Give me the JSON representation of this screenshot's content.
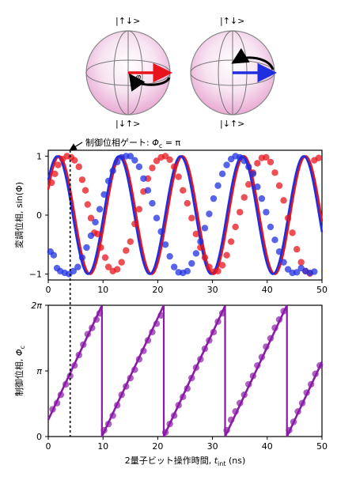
{
  "bloch": {
    "left": {
      "top_ket": "|↑↓>",
      "bottom_ket": "|↓↑>",
      "phi": "φ"
    },
    "right": {
      "top_ket": "|↑↓>",
      "bottom_ket": "|↓↑>"
    },
    "colors": {
      "sphere": "#f2c6e3",
      "red": "#e8141c",
      "blue": "#1f2fe0",
      "black": "#000000"
    }
  },
  "annotation": {
    "text": "制御位相ゲート: ",
    "math": "Φ",
    "sub": "c",
    "tail": " = π"
  },
  "chart_data": [
    {
      "type": "scatter",
      "title": "",
      "xlabel": "",
      "ylabel": "変調位相, sin(Φ)",
      "xlim": [
        0,
        50
      ],
      "ylim": [
        -1.1,
        1.1
      ],
      "xticks": [
        "0",
        "10",
        "20",
        "30",
        "40",
        "50"
      ],
      "yticks": [
        "1",
        "0",
        "−1"
      ],
      "vline_x": 4,
      "series": [
        {
          "color": "#e8141c",
          "fit": "sin(2π(t-0.6)/11.25 + π/4)",
          "points": [
            [
              0.6,
              0.55
            ],
            [
              1.2,
              0.7
            ],
            [
              1.8,
              0.85
            ],
            [
              2.6,
              0.95
            ],
            [
              3.4,
              1.0
            ],
            [
              4.2,
              0.98
            ],
            [
              4.8,
              0.93
            ],
            [
              5.6,
              0.82
            ],
            [
              6.2,
              0.6
            ],
            [
              6.8,
              0.42
            ],
            [
              7.2,
              0.18
            ],
            [
              7.8,
              -0.05
            ],
            [
              8.4,
              -0.3
            ],
            [
              9.0,
              -0.32
            ],
            [
              9.6,
              -0.55
            ],
            [
              10.4,
              -0.72
            ],
            [
              11.0,
              -0.88
            ],
            [
              11.8,
              -0.95
            ],
            [
              12.6,
              -0.92
            ],
            [
              13.4,
              -0.8
            ],
            [
              14.2,
              -0.6
            ],
            [
              15.0,
              -0.45
            ],
            [
              15.8,
              -0.15
            ],
            [
              16.6,
              0.1
            ],
            [
              17.4,
              0.4
            ],
            [
              18.2,
              0.62
            ],
            [
              19.0,
              0.8
            ],
            [
              19.8,
              0.92
            ],
            [
              20.6,
              0.98
            ],
            [
              21.4,
              1.0
            ],
            [
              22.2,
              0.94
            ],
            [
              23.0,
              0.82
            ],
            [
              23.8,
              0.65
            ],
            [
              24.6,
              0.42
            ],
            [
              25.4,
              0.2
            ],
            [
              26.2,
              -0.05
            ],
            [
              27.0,
              -0.32
            ],
            [
              27.8,
              -0.55
            ],
            [
              28.6,
              -0.72
            ],
            [
              29.4,
              -0.88
            ],
            [
              30.2,
              -0.96
            ],
            [
              31.0,
              -0.95
            ],
            [
              31.8,
              -0.85
            ],
            [
              32.6,
              -0.68
            ],
            [
              33.4,
              -0.45
            ],
            [
              34.2,
              -0.2
            ],
            [
              35.0,
              0.05
            ],
            [
              35.8,
              0.3
            ],
            [
              36.6,
              0.52
            ],
            [
              37.4,
              0.72
            ],
            [
              38.2,
              0.88
            ],
            [
              39.0,
              0.97
            ],
            [
              39.8,
              0.98
            ],
            [
              40.6,
              0.9
            ],
            [
              41.4,
              0.72
            ],
            [
              42.2,
              0.5
            ],
            [
              43.0,
              0.25
            ],
            [
              43.8,
              -0.05
            ],
            [
              44.6,
              -0.3
            ],
            [
              45.4,
              -0.58
            ],
            [
              46.2,
              -0.8
            ],
            [
              47.0,
              -0.95
            ],
            [
              47.8,
              -0.99
            ],
            [
              48.6,
              0.93
            ],
            [
              49.4,
              0.97
            ]
          ]
        },
        {
          "color": "#1f2fe0",
          "fit": "sin(2π(t-10.1)/11.25)",
          "points": [
            [
              0.4,
              -0.62
            ],
            [
              1.0,
              -0.68
            ],
            [
              1.6,
              -0.9
            ],
            [
              2.2,
              -0.95
            ],
            [
              3.0,
              -0.98
            ],
            [
              3.8,
              -1.0
            ],
            [
              4.6,
              -0.95
            ],
            [
              5.4,
              -0.88
            ],
            [
              6.2,
              -0.72
            ],
            [
              7.0,
              -0.55
            ],
            [
              7.8,
              -0.35
            ],
            [
              8.6,
              -0.12
            ],
            [
              9.4,
              0.1
            ],
            [
              10.2,
              0.35
            ],
            [
              11.0,
              0.58
            ],
            [
              11.8,
              0.75
            ],
            [
              12.6,
              0.9
            ],
            [
              13.4,
              0.98
            ],
            [
              14.2,
              1.0
            ],
            [
              15.0,
              1.0
            ],
            [
              15.8,
              0.93
            ],
            [
              16.6,
              0.82
            ],
            [
              17.4,
              0.62
            ],
            [
              18.2,
              0.42
            ],
            [
              19.0,
              0.2
            ],
            [
              19.8,
              -0.05
            ],
            [
              20.6,
              -0.28
            ],
            [
              21.4,
              -0.5
            ],
            [
              22.2,
              -0.7
            ],
            [
              23.0,
              -0.88
            ],
            [
              23.8,
              -0.97
            ],
            [
              24.6,
              -0.98
            ],
            [
              25.4,
              -0.95
            ],
            [
              26.2,
              -0.82
            ],
            [
              27.0,
              -0.65
            ],
            [
              27.8,
              -0.45
            ],
            [
              28.6,
              -0.22
            ],
            [
              29.4,
              0.02
            ],
            [
              30.2,
              0.28
            ],
            [
              31.0,
              0.5
            ],
            [
              31.8,
              0.7
            ],
            [
              32.6,
              0.85
            ],
            [
              33.4,
              0.95
            ],
            [
              34.2,
              1.0
            ],
            [
              35.0,
              0.98
            ],
            [
              35.8,
              0.92
            ],
            [
              36.6,
              0.82
            ],
            [
              37.4,
              0.7
            ],
            [
              38.2,
              0.48
            ],
            [
              39.0,
              0.28
            ],
            [
              39.8,
              0.05
            ],
            [
              40.6,
              -0.2
            ],
            [
              41.4,
              -0.42
            ],
            [
              42.2,
              -0.62
            ],
            [
              43.0,
              -0.8
            ],
            [
              43.8,
              -0.92
            ],
            [
              44.6,
              -0.98
            ],
            [
              45.4,
              -0.97
            ],
            [
              46.2,
              -0.9
            ],
            [
              47.0,
              -0.95
            ],
            [
              47.8,
              -0.98
            ],
            [
              48.6,
              -0.96
            ]
          ]
        }
      ]
    },
    {
      "type": "scatter",
      "title": "",
      "xlabel": "2量子ビット操作時間, ",
      "xlabel_math": "t",
      "xlabel_sub": "int",
      "xlabel_unit": " (ns)",
      "ylabel": "制御位相, ",
      "ylabel_math": "Φ",
      "ylabel_sub": "c",
      "xlim": [
        0,
        50
      ],
      "ylim": [
        0,
        6.2832
      ],
      "xticks": [
        "0",
        "10",
        "20",
        "30",
        "40",
        "50"
      ],
      "yticks": [
        "2π",
        "π",
        "0"
      ],
      "vline_x": 4,
      "series": [
        {
          "color": "#8a1aa6",
          "fit_sawtooth": {
            "slope_per_ns": 0.5585,
            "offset": 0.8,
            "wraps": [
              9.8,
              21.1,
              32.3,
              43.6
            ]
          },
          "points": [
            [
              0.8,
              1.3
            ],
            [
              1.6,
              1.6
            ],
            [
              2.3,
              2.0
            ],
            [
              3.2,
              2.5
            ],
            [
              4.0,
              2.9
            ],
            [
              4.8,
              3.4
            ],
            [
              5.6,
              3.9
            ],
            [
              6.4,
              4.4
            ],
            [
              7.2,
              4.9
            ],
            [
              8.0,
              5.2
            ],
            [
              8.8,
              5.6
            ],
            [
              9.4,
              5.9
            ],
            [
              10.2,
              0.3
            ],
            [
              11.0,
              0.6
            ],
            [
              11.8,
              1.0
            ],
            [
              12.6,
              1.5
            ],
            [
              13.4,
              2.0
            ],
            [
              14.2,
              2.4
            ],
            [
              15.0,
              2.8
            ],
            [
              15.8,
              3.2
            ],
            [
              16.6,
              3.7
            ],
            [
              17.4,
              4.1
            ],
            [
              18.2,
              4.6
            ],
            [
              19.0,
              5.0
            ],
            [
              19.8,
              5.4
            ],
            [
              20.6,
              5.8
            ],
            [
              21.4,
              0.2
            ],
            [
              22.2,
              0.6
            ],
            [
              23.0,
              1.0
            ],
            [
              23.8,
              1.5
            ],
            [
              24.6,
              1.9
            ],
            [
              25.4,
              2.3
            ],
            [
              26.2,
              2.8
            ],
            [
              27.0,
              3.3
            ],
            [
              27.8,
              3.7
            ],
            [
              28.6,
              4.2
            ],
            [
              29.4,
              4.6
            ],
            [
              30.2,
              5.0
            ],
            [
              31.0,
              5.5
            ],
            [
              31.8,
              5.9
            ],
            [
              32.6,
              0.3
            ],
            [
              33.4,
              0.8
            ],
            [
              34.2,
              1.2
            ],
            [
              35.0,
              1.6
            ],
            [
              35.8,
              2.0
            ],
            [
              36.6,
              2.5
            ],
            [
              37.4,
              2.9
            ],
            [
              38.2,
              3.4
            ],
            [
              39.0,
              3.8
            ],
            [
              39.8,
              4.3
            ],
            [
              40.6,
              4.7
            ],
            [
              41.4,
              5.2
            ],
            [
              42.2,
              5.6
            ],
            [
              43.0,
              6.0
            ],
            [
              44.0,
              0.3
            ],
            [
              44.8,
              0.7
            ],
            [
              45.6,
              1.2
            ],
            [
              46.4,
              1.6
            ],
            [
              47.2,
              2.1
            ],
            [
              48.0,
              2.5
            ],
            [
              48.8,
              3.0
            ],
            [
              49.6,
              3.4
            ]
          ]
        }
      ]
    }
  ]
}
